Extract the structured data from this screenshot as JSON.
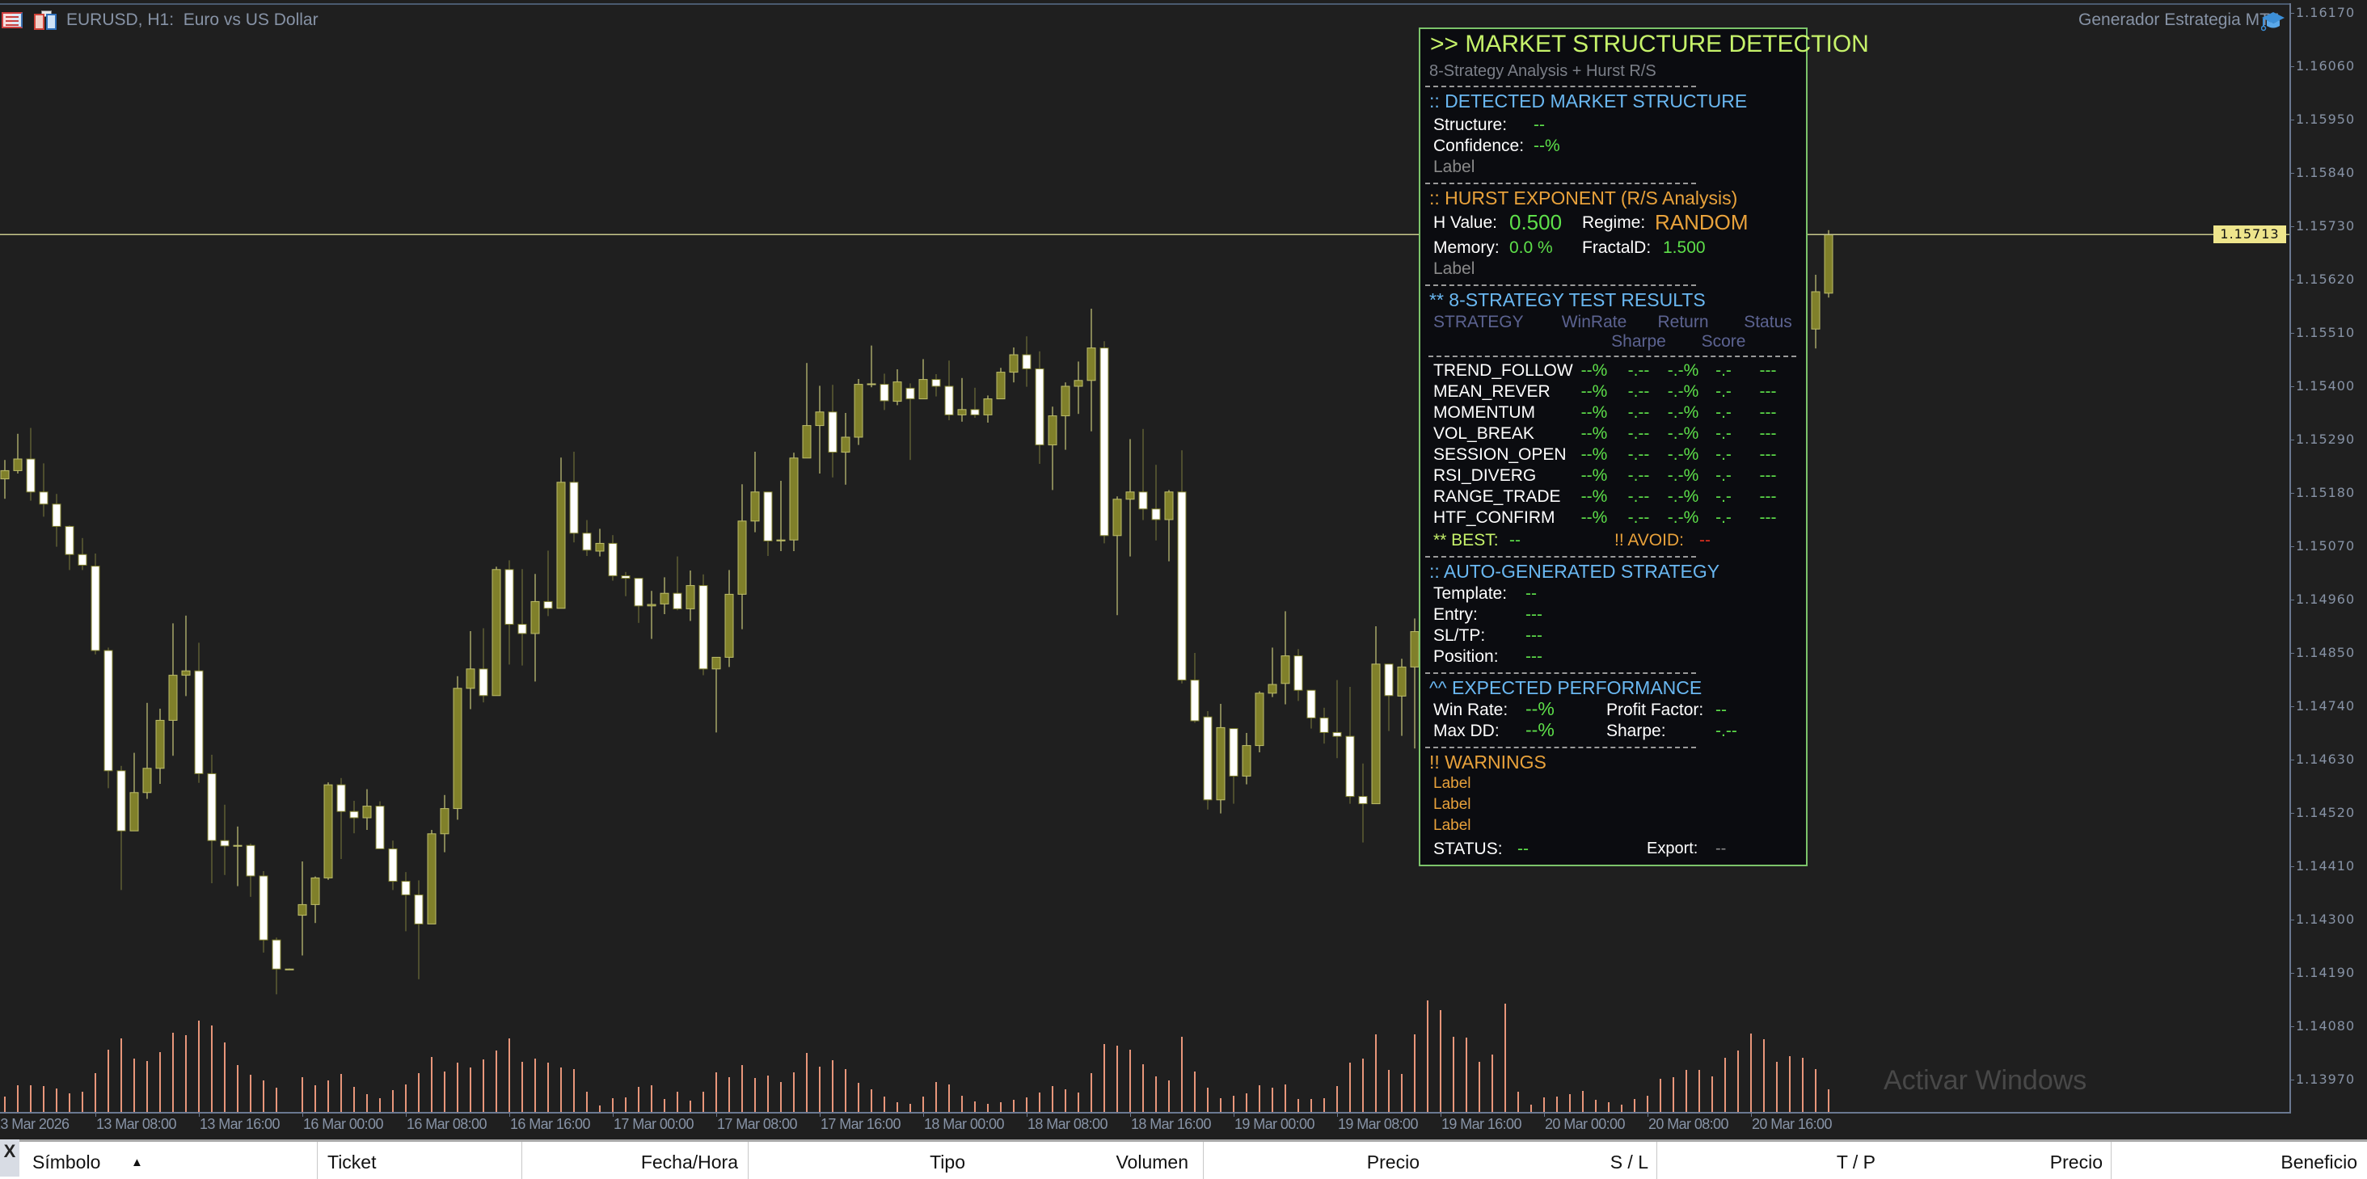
{
  "window": {
    "symbol_title": "EURUSD, H1:  Euro vs US Dollar",
    "ea_name": "Generador Estrategia MT5",
    "icons": [
      "one-click-trading-icon",
      "chart-window-icon",
      "expert-advisor-cap-icon"
    ]
  },
  "panel": {
    "title": ">> MARKET STRUCTURE DETECTION",
    "subtitle": "8-Strategy Analysis + Hurst R/S",
    "structure": {
      "header": ":: DETECTED MARKET STRUCTURE",
      "structure_label": "Structure:",
      "structure_value": "--",
      "confidence_label": "Confidence:",
      "confidence_value": "--%",
      "extra_label": "Label"
    },
    "hurst": {
      "header": ":: HURST EXPONENT (R/S Analysis)",
      "h_label": "H Value:",
      "h_value": "0.500",
      "regime_label": "Regime:",
      "regime_value": "RANDOM",
      "memory_label": "Memory:",
      "memory_value": "0.0 %",
      "fractal_label": "FractalD:",
      "fractal_value": "1.500",
      "extra_label": "Label"
    },
    "strategies": {
      "header": "** 8-STRATEGY TEST RESULTS",
      "columns": [
        "STRATEGY",
        "WinRate",
        "Sharpe",
        "Return",
        "Score",
        "Status"
      ],
      "rows": [
        {
          "name": "TREND_FOLLOW",
          "winrate": "--%",
          "sharpe": "-.--",
          "return": "-.-%",
          "score": "-.-",
          "status": "---"
        },
        {
          "name": "MEAN_REVER",
          "winrate": "--%",
          "sharpe": "-.--",
          "return": "-.-%",
          "score": "-.-",
          "status": "---"
        },
        {
          "name": "MOMENTUM",
          "winrate": "--%",
          "sharpe": "-.--",
          "return": "-.-%",
          "score": "-.-",
          "status": "---"
        },
        {
          "name": "VOL_BREAK",
          "winrate": "--%",
          "sharpe": "-.--",
          "return": "-.-%",
          "score": "-.-",
          "status": "---"
        },
        {
          "name": "SESSION_OPEN",
          "winrate": "--%",
          "sharpe": "-.--",
          "return": "-.-%",
          "score": "-.-",
          "status": "---"
        },
        {
          "name": "RSI_DIVERG",
          "winrate": "--%",
          "sharpe": "-.--",
          "return": "-.-%",
          "score": "-.-",
          "status": "---"
        },
        {
          "name": "RANGE_TRADE",
          "winrate": "--%",
          "sharpe": "-.--",
          "return": "-.-%",
          "score": "-.-",
          "status": "---"
        },
        {
          "name": "HTF_CONFIRM",
          "winrate": "--%",
          "sharpe": "-.--",
          "return": "-.-%",
          "score": "-.-",
          "status": "---"
        }
      ],
      "best_label": "** BEST:",
      "best_value": "--",
      "avoid_label": "!! AVOID:",
      "avoid_value": "--"
    },
    "auto_strategy": {
      "header": ":: AUTO-GENERATED STRATEGY",
      "template_label": "Template:",
      "template_value": "--",
      "entry_label": "Entry:",
      "entry_value": "---",
      "sltp_label": "SL/TP:",
      "sltp_value": "---",
      "position_label": "Position:",
      "position_value": "---"
    },
    "performance": {
      "header": "^^ EXPECTED PERFORMANCE",
      "winrate_label": "Win Rate:",
      "winrate_value": "--%",
      "pf_label": "Profit Factor:",
      "pf_value": "--",
      "maxdd_label": "Max DD:",
      "maxdd_value": "--%",
      "sharpe_label": "Sharpe:",
      "sharpe_value": "-.--"
    },
    "warnings": {
      "header": "!! WARNINGS",
      "items": [
        "Label",
        "Label",
        "Label"
      ]
    },
    "status_label": "STATUS:",
    "status_value": "--",
    "export_label": "Export:",
    "export_value": "--"
  },
  "price_axis": {
    "labels": [
      "1.16170",
      "1.16060",
      "1.15950",
      "1.15840",
      "1.15730",
      "1.15620",
      "1.15510",
      "1.15400",
      "1.15290",
      "1.15180",
      "1.15070",
      "1.14960",
      "1.14850",
      "1.14740",
      "1.14630",
      "1.14520",
      "1.14410",
      "1.14300",
      "1.14190",
      "1.14080",
      "1.13970"
    ],
    "current_price": "1.15713"
  },
  "time_axis": {
    "labels": [
      "13 Mar 2026",
      "13 Mar 08:00",
      "13 Mar 16:00",
      "16 Mar 00:00",
      "16 Mar 08:00",
      "16 Mar 16:00",
      "17 Mar 00:00",
      "17 Mar 08:00",
      "17 Mar 16:00",
      "18 Mar 00:00",
      "18 Mar 08:00",
      "18 Mar 16:00",
      "19 Mar 00:00",
      "19 Mar 08:00",
      "19 Mar 16:00",
      "20 Mar 00:00",
      "20 Mar 08:00",
      "20 Mar 16:00"
    ]
  },
  "table": {
    "close_glyph": "X",
    "columns": [
      "Símbolo",
      "Ticket",
      "Fecha/Hora",
      "Tipo",
      "Volumen",
      "Precio",
      "S / L",
      "T / P",
      "Precio",
      "Beneficio"
    ],
    "sort_indicator": "▲"
  },
  "watermark": "Activar Windows",
  "colors": {
    "background": "#1f1f1f",
    "bull_candle": "#80802a",
    "bear_candle": "#ffffff",
    "volume": "#e8967a",
    "price_line": "#c8c88c",
    "panel_border": "#7cc46a",
    "panel_background": "#0b0c10",
    "accent_green": "#5ee04a",
    "accent_blue": "#6ab8f2",
    "accent_orange": "#e9a23b"
  },
  "chart_data": {
    "type": "candlestick",
    "symbol": "EURUSD",
    "timeframe": "H1",
    "ylim": [
      1.1397,
      1.1617
    ],
    "grid": false,
    "current_price": 1.15713,
    "ohlc_fields": [
      "open",
      "high",
      "low",
      "close"
    ],
    "ohlc": [
      [
        1.15209,
        1.15248,
        1.15168,
        1.15226
      ],
      [
        1.15226,
        1.15302,
        1.1522,
        1.1525
      ],
      [
        1.1525,
        1.15314,
        1.15164,
        1.15182
      ],
      [
        1.15182,
        1.15241,
        1.15131,
        1.15157
      ],
      [
        1.15157,
        1.15178,
        1.15069,
        1.15111
      ],
      [
        1.15111,
        1.15113,
        1.15021,
        1.15053
      ],
      [
        1.15053,
        1.15087,
        1.15021,
        1.15031
      ],
      [
        1.15029,
        1.15055,
        1.14847,
        1.14855
      ],
      [
        1.14855,
        1.14861,
        1.14571,
        1.14607
      ],
      [
        1.14607,
        1.14617,
        1.14361,
        1.14483
      ],
      [
        1.14483,
        1.14644,
        1.14483,
        1.14562
      ],
      [
        1.14562,
        1.14747,
        1.14549,
        1.14612
      ],
      [
        1.14612,
        1.14735,
        1.1458,
        1.14711
      ],
      [
        1.14711,
        1.14911,
        1.14638,
        1.14804
      ],
      [
        1.14804,
        1.14927,
        1.14761,
        1.14813
      ],
      [
        1.14813,
        1.14871,
        1.14582,
        1.14601
      ],
      [
        1.14601,
        1.1464,
        1.14375,
        1.14463
      ],
      [
        1.14463,
        1.14537,
        1.14392,
        1.14452
      ],
      [
        1.14452,
        1.14492,
        1.14369,
        1.14453
      ],
      [
        1.14453,
        1.14457,
        1.14347,
        1.1439
      ],
      [
        1.1439,
        1.144,
        1.14232,
        1.14258
      ],
      [
        1.14258,
        1.14263,
        1.14146,
        1.14198
      ],
      [
        1.14198,
        1.14199,
        1.14197,
        1.14198
      ],
      [
        1.14309,
        1.1442,
        1.14226,
        1.14331
      ],
      [
        1.14331,
        1.14389,
        1.14293,
        1.14386
      ],
      [
        1.14386,
        1.14583,
        1.14382,
        1.14578
      ],
      [
        1.14578,
        1.14592,
        1.14425,
        1.14523
      ],
      [
        1.14523,
        1.14545,
        1.14478,
        1.1451
      ],
      [
        1.1451,
        1.14569,
        1.14485,
        1.14534
      ],
      [
        1.14534,
        1.14544,
        1.14446,
        1.14446
      ],
      [
        1.14446,
        1.14463,
        1.14361,
        1.14379
      ],
      [
        1.14379,
        1.14398,
        1.14276,
        1.14351
      ],
      [
        1.14351,
        1.14381,
        1.14177,
        1.14291
      ],
      [
        1.14291,
        1.14485,
        1.14291,
        1.14477
      ],
      [
        1.14477,
        1.14557,
        1.14439,
        1.14529
      ],
      [
        1.14529,
        1.14802,
        1.14506,
        1.14777
      ],
      [
        1.14777,
        1.14895,
        1.14734,
        1.14817
      ],
      [
        1.14817,
        1.14901,
        1.14748,
        1.14762
      ],
      [
        1.14762,
        1.15028,
        1.14762,
        1.15022
      ],
      [
        1.15022,
        1.15041,
        1.14826,
        1.14909
      ],
      [
        1.14909,
        1.15023,
        1.14824,
        1.1489
      ],
      [
        1.1489,
        1.15013,
        1.14791,
        1.14956
      ],
      [
        1.14956,
        1.15061,
        1.14926,
        1.14942
      ],
      [
        1.14942,
        1.15253,
        1.14942,
        1.15202
      ],
      [
        1.15202,
        1.15265,
        1.15078,
        1.15097
      ],
      [
        1.15097,
        1.15124,
        1.1505,
        1.15062
      ],
      [
        1.1506,
        1.15106,
        1.15049,
        1.15076
      ],
      [
        1.15076,
        1.15093,
        1.14999,
        1.15009
      ],
      [
        1.15009,
        1.15017,
        1.14967,
        1.15004
      ],
      [
        1.15004,
        1.15004,
        1.14912,
        1.14947
      ],
      [
        1.14947,
        1.14978,
        1.14879,
        1.1495
      ],
      [
        1.14951,
        1.15006,
        1.1493,
        1.14973
      ],
      [
        1.14973,
        1.15049,
        1.14938,
        1.14941
      ],
      [
        1.14941,
        1.1502,
        1.14916,
        1.14989
      ],
      [
        1.14989,
        1.15012,
        1.14804,
        1.14817
      ],
      [
        1.14817,
        1.14841,
        1.14686,
        1.14841
      ],
      [
        1.14841,
        1.15021,
        1.14821,
        1.14971
      ],
      [
        1.14971,
        1.15198,
        1.14899,
        1.15122
      ],
      [
        1.15122,
        1.15265,
        1.15099,
        1.15182
      ],
      [
        1.15182,
        1.15182,
        1.1505,
        1.15081
      ],
      [
        1.15081,
        1.15205,
        1.1506,
        1.15083
      ],
      [
        1.15083,
        1.15263,
        1.1506,
        1.15252
      ],
      [
        1.15252,
        1.15448,
        1.15252,
        1.15319
      ],
      [
        1.15319,
        1.15401,
        1.1522,
        1.15347
      ],
      [
        1.15347,
        1.15403,
        1.15212,
        1.15264
      ],
      [
        1.15264,
        1.15345,
        1.15197,
        1.15295
      ],
      [
        1.15295,
        1.15415,
        1.15279,
        1.15404
      ],
      [
        1.15404,
        1.15484,
        1.15398,
        1.15405
      ],
      [
        1.15404,
        1.15426,
        1.15351,
        1.1537
      ],
      [
        1.15369,
        1.15435,
        1.15361,
        1.15409
      ],
      [
        1.15396,
        1.15406,
        1.15248,
        1.15374
      ],
      [
        1.15374,
        1.15456,
        1.15374,
        1.15414
      ],
      [
        1.15414,
        1.15425,
        1.15379,
        1.154
      ],
      [
        1.154,
        1.15453,
        1.1533,
        1.15341
      ],
      [
        1.15341,
        1.15417,
        1.15327,
        1.15352
      ],
      [
        1.15352,
        1.15397,
        1.15335,
        1.15341
      ],
      [
        1.15341,
        1.15381,
        1.15325,
        1.15374
      ],
      [
        1.15374,
        1.15438,
        1.15374,
        1.15429
      ],
      [
        1.15429,
        1.1548,
        1.15408,
        1.15465
      ],
      [
        1.15465,
        1.15503,
        1.15399,
        1.15436
      ],
      [
        1.15436,
        1.15472,
        1.1524,
        1.15279
      ],
      [
        1.15279,
        1.15358,
        1.15186,
        1.15339
      ],
      [
        1.15339,
        1.15408,
        1.15269,
        1.154
      ],
      [
        1.154,
        1.15451,
        1.15343,
        1.15412
      ],
      [
        1.15412,
        1.1556,
        1.15307,
        1.15479
      ],
      [
        1.15479,
        1.15493,
        1.15076,
        1.15092
      ],
      [
        1.15092,
        1.15173,
        1.14928,
        1.15167
      ],
      [
        1.15167,
        1.15291,
        1.15049,
        1.15182
      ],
      [
        1.15182,
        1.15312,
        1.15124,
        1.15147
      ],
      [
        1.15147,
        1.15238,
        1.15082,
        1.15125
      ],
      [
        1.15125,
        1.15186,
        1.15039,
        1.15182
      ],
      [
        1.15182,
        1.15268,
        1.14787,
        1.14794
      ],
      [
        1.14794,
        1.1485,
        1.14706,
        1.1471
      ],
      [
        1.14718,
        1.1473,
        1.14527,
        1.14547
      ],
      [
        1.14547,
        1.14745,
        1.14519,
        1.14696
      ],
      [
        1.14694,
        1.14694,
        1.14539,
        1.14596
      ],
      [
        1.14596,
        1.14685,
        1.14579,
        1.14659
      ],
      [
        1.14659,
        1.14771,
        1.14645,
        1.14767
      ],
      [
        1.14767,
        1.14861,
        1.14759,
        1.14785
      ],
      [
        1.14787,
        1.14936,
        1.14744,
        1.14844
      ],
      [
        1.14844,
        1.14858,
        1.14751,
        1.14773
      ],
      [
        1.14773,
        1.14773,
        1.14694,
        1.14716
      ],
      [
        1.14716,
        1.14737,
        1.14663,
        1.14686
      ],
      [
        1.14686,
        1.14794,
        1.14633,
        1.14678
      ],
      [
        1.14678,
        1.1478,
        1.14539,
        1.14554
      ],
      [
        1.14554,
        1.14622,
        1.14459,
        1.14539
      ],
      [
        1.14539,
        1.14905,
        1.14539,
        1.14827
      ],
      [
        1.14827,
        1.14827,
        1.14689,
        1.14762
      ],
      [
        1.14761,
        1.14838,
        1.14679,
        1.14821
      ],
      [
        1.14821,
        1.14921,
        1.14653,
        1.14894
      ],
      [
        1.14894,
        1.1496,
        1.14722,
        1.149
      ],
      null,
      null,
      null,
      null,
      null,
      null,
      null,
      null,
      null,
      null,
      null,
      null,
      null,
      null,
      null,
      null,
      null,
      null,
      null,
      null,
      null,
      null,
      null,
      null,
      null,
      null,
      null,
      null,
      null,
      [
        1.15518,
        1.1563,
        1.15478,
        1.15595
      ],
      [
        1.15592,
        1.15722,
        1.15583,
        1.15713
      ]
    ],
    "volume": [
      19,
      33,
      33,
      32,
      29,
      23,
      25,
      48,
      77,
      91,
      66,
      63,
      74,
      98,
      95,
      113,
      107,
      86,
      58,
      46,
      39,
      30,
      0,
      43,
      33,
      39,
      47,
      31,
      22,
      17,
      27,
      34,
      48,
      68,
      50,
      61,
      55,
      65,
      76,
      91,
      62,
      66,
      61,
      55,
      53,
      25,
      8,
      17,
      18,
      31,
      33,
      16,
      25,
      14,
      25,
      49,
      43,
      58,
      42,
      45,
      37,
      49,
      73,
      56,
      64,
      53,
      36,
      28,
      19,
      12,
      10,
      19,
      37,
      34,
      20,
      13,
      10,
      12,
      15,
      18,
      24,
      32,
      28,
      24,
      48,
      84,
      82,
      77,
      59,
      44,
      39,
      93,
      50,
      30,
      17,
      20,
      23,
      33,
      30,
      34,
      16,
      16,
      17,
      32,
      61,
      66,
      96,
      52,
      47,
      96,
      138,
      126,
      93,
      92,
      62,
      71,
      134,
      25,
      9,
      18,
      19,
      22,
      26,
      15,
      12,
      9,
      16,
      20,
      41,
      43,
      52,
      52,
      44,
      67,
      76,
      97,
      90,
      62,
      69,
      67,
      53,
      28
    ]
  }
}
